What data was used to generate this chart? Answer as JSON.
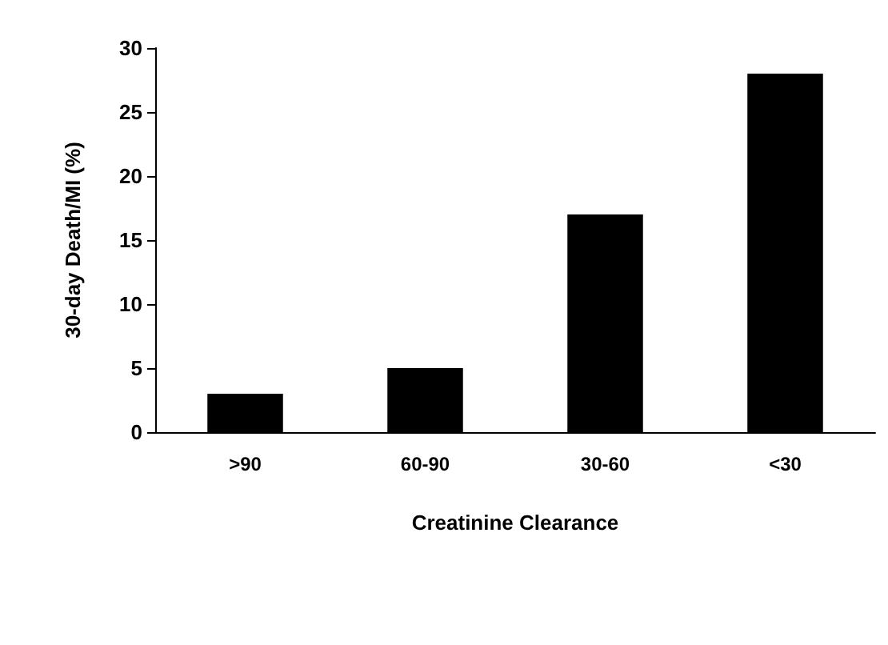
{
  "chart_data": {
    "type": "bar",
    "xlabel": "Creatinine Clearance",
    "ylabel": "30-day Death/MI (%)",
    "categories": [
      ">90",
      "60-90",
      "30-60",
      "<30"
    ],
    "values": [
      3,
      5,
      17,
      28
    ],
    "color": "#000000",
    "ylim": [
      0,
      30
    ],
    "yticks": [
      0,
      5,
      10,
      15,
      20,
      25,
      30
    ],
    "grid": false
  }
}
